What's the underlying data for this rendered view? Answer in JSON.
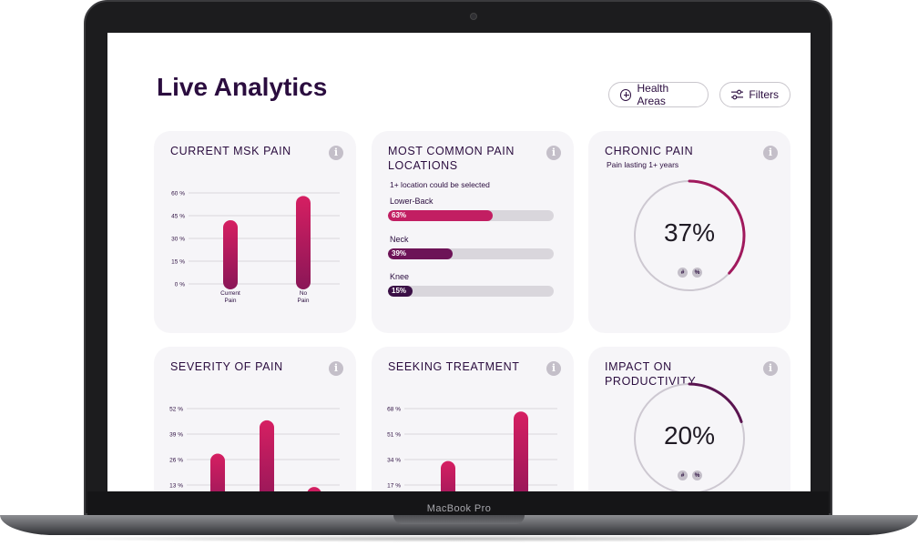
{
  "device": {
    "label": "MacBook Pro"
  },
  "header": {
    "title": "Live Analytics",
    "health_areas_label": "Health Areas",
    "filters_label": "Filters"
  },
  "colors": {
    "primary": "#2b0d3f",
    "accent": "#d61f62",
    "accent_dark": "#8a1657",
    "track": "#d9d6dc",
    "card_bg": "#f6f5f8"
  },
  "cards": {
    "msk": {
      "title": "CURRENT MSK PAIN",
      "chart_data": {
        "type": "bar",
        "categories": [
          "Current Pain",
          "No Pain"
        ],
        "values": [
          42,
          58
        ],
        "yticks": [
          "60 %",
          "45 %",
          "30 %",
          "15 %",
          "0 %"
        ],
        "ylim": [
          0,
          60
        ]
      }
    },
    "locations": {
      "title": "MOST COMMON PAIN LOCATIONS",
      "subtitle": "1+ location could be selected",
      "items": [
        {
          "label": "Lower-Back",
          "value": "63%",
          "percent": 63,
          "color": "#c21e62"
        },
        {
          "label": "Neck",
          "value": "39%",
          "percent": 39,
          "color": "#6d1357"
        },
        {
          "label": "Knee",
          "value": "15%",
          "percent": 15,
          "color": "#3a0f45"
        }
      ]
    },
    "chronic": {
      "title": "CHRONIC PAIN",
      "subtitle": "Pain lasting 1+ years",
      "value": "37%",
      "percent": 37,
      "color": "#a0195d",
      "toggle_count": "#",
      "toggle_percent": "%"
    },
    "severity": {
      "title": "SEVERITY OF PAIN",
      "chart_data": {
        "type": "bar",
        "categories": [
          "",
          "",
          ""
        ],
        "values": [
          29,
          46,
          12
        ],
        "yticks": [
          "52 %",
          "39 %",
          "26 %",
          "13 %"
        ],
        "ylim": [
          0,
          52
        ]
      }
    },
    "treatment": {
      "title": "SEEKING TREATMENT",
      "chart_data": {
        "type": "bar",
        "categories": [
          "",
          ""
        ],
        "values": [
          33,
          66
        ],
        "yticks": [
          "68 %",
          "51 %",
          "34 %",
          "17 %"
        ],
        "ylim": [
          0,
          68
        ]
      }
    },
    "productivity": {
      "title": "IMPACT ON PRODUCTIVITY",
      "value": "20%",
      "percent": 20,
      "color": "#5a1450",
      "toggle_count": "#",
      "toggle_percent": "%"
    }
  }
}
